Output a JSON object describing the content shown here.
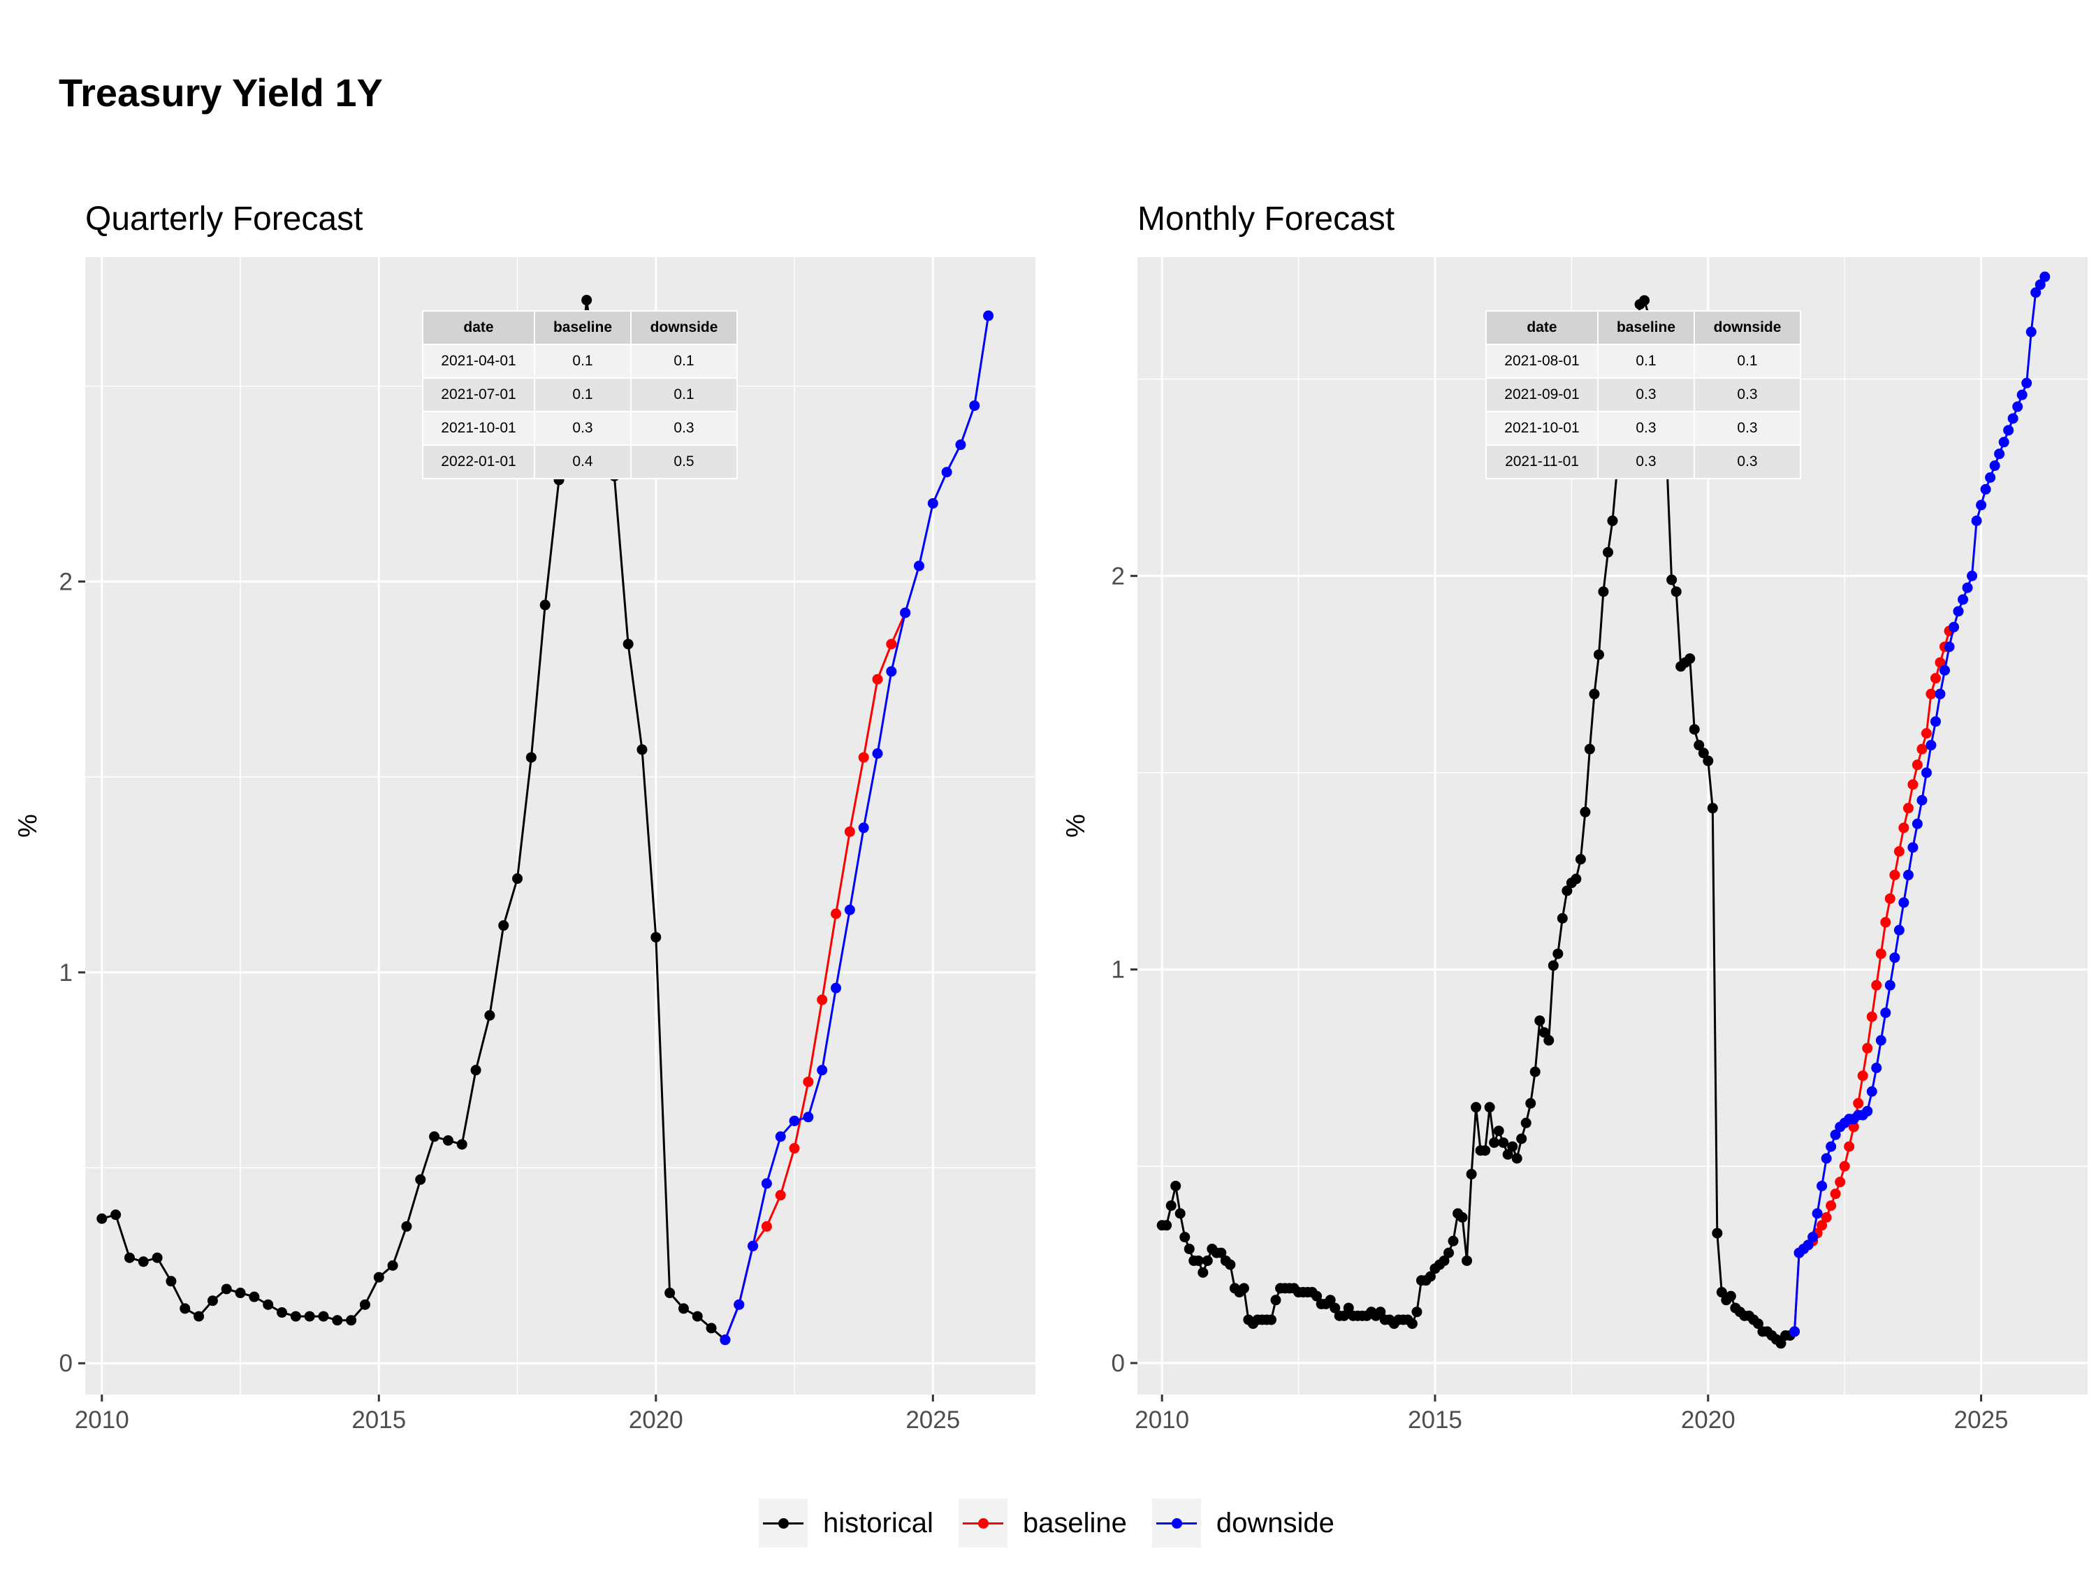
{
  "title": "Treasury Yield 1Y",
  "colors": {
    "historical": "#000000",
    "baseline": "#ff0000",
    "downside": "#0000ff"
  },
  "legend": [
    {
      "key": "historical",
      "label": "historical",
      "color": "#000000"
    },
    {
      "key": "baseline",
      "label": "baseline",
      "color": "#ff0000"
    },
    {
      "key": "downside",
      "label": "downside",
      "color": "#0000ff"
    }
  ],
  "chart_data": [
    {
      "type": "line",
      "title": "Quarterly Forecast",
      "ylabel": "%",
      "xlabel": "",
      "xlim": [
        2009.7,
        2026.85
      ],
      "ylim": [
        -0.08,
        2.83
      ],
      "xticks": [
        {
          "value": 2010,
          "label": "2010"
        },
        {
          "value": 2015,
          "label": "2015"
        },
        {
          "value": 2020,
          "label": "2020"
        },
        {
          "value": 2025,
          "label": "2025"
        }
      ],
      "yticks": [
        {
          "value": 0,
          "label": "0"
        },
        {
          "value": 1,
          "label": "1"
        },
        {
          "value": 2,
          "label": "2"
        }
      ],
      "grid": true,
      "series": [
        {
          "name": "historical",
          "color": "#000000",
          "x": [
            2010.0,
            2010.25,
            2010.5,
            2010.75,
            2011.0,
            2011.25,
            2011.5,
            2011.75,
            2012.0,
            2012.25,
            2012.5,
            2012.75,
            2013.0,
            2013.25,
            2013.5,
            2013.75,
            2014.0,
            2014.25,
            2014.5,
            2014.75,
            2015.0,
            2015.25,
            2015.5,
            2015.75,
            2016.0,
            2016.25,
            2016.5,
            2016.75,
            2017.0,
            2017.25,
            2017.5,
            2017.75,
            2018.0,
            2018.25,
            2018.5,
            2018.75,
            2019.0,
            2019.25,
            2019.5,
            2019.75,
            2020.0,
            2020.25,
            2020.5,
            2020.75,
            2021.0,
            2021.25
          ],
          "y": [
            0.37,
            0.38,
            0.27,
            0.26,
            0.27,
            0.21,
            0.14,
            0.12,
            0.16,
            0.19,
            0.18,
            0.17,
            0.15,
            0.13,
            0.12,
            0.12,
            0.12,
            0.11,
            0.11,
            0.15,
            0.22,
            0.25,
            0.35,
            0.47,
            0.58,
            0.57,
            0.56,
            0.75,
            0.89,
            1.12,
            1.24,
            1.55,
            1.94,
            2.26,
            2.38,
            2.72,
            2.45,
            2.27,
            1.84,
            1.57,
            1.09,
            0.18,
            0.14,
            0.12,
            0.09,
            0.06
          ]
        },
        {
          "name": "baseline",
          "color": "#ff0000",
          "x": [
            2021.25,
            2021.5,
            2021.75,
            2022.0,
            2022.25,
            2022.5,
            2022.75,
            2023.0,
            2023.25,
            2023.5,
            2023.75,
            2024.0,
            2024.25,
            2024.5
          ],
          "y": [
            0.06,
            0.15,
            0.3,
            0.35,
            0.43,
            0.55,
            0.72,
            0.93,
            1.15,
            1.36,
            1.55,
            1.75,
            1.84,
            1.92
          ]
        },
        {
          "name": "downside",
          "color": "#0000ff",
          "x": [
            2021.25,
            2021.5,
            2021.75,
            2022.0,
            2022.25,
            2022.5,
            2022.75,
            2023.0,
            2023.25,
            2023.5,
            2023.75,
            2024.0,
            2024.25,
            2024.5,
            2024.75,
            2025.0,
            2025.25,
            2025.5,
            2025.75,
            2026.0
          ],
          "y": [
            0.06,
            0.15,
            0.3,
            0.46,
            0.58,
            0.62,
            0.63,
            0.75,
            0.96,
            1.16,
            1.37,
            1.56,
            1.77,
            1.92,
            2.04,
            2.2,
            2.28,
            2.35,
            2.45,
            2.68
          ]
        }
      ],
      "table": {
        "headers": [
          "date",
          "baseline",
          "downside"
        ],
        "rows": [
          [
            "2021-04-01",
            "0.1",
            "0.1"
          ],
          [
            "2021-07-01",
            "0.1",
            "0.1"
          ],
          [
            "2021-10-01",
            "0.3",
            "0.3"
          ],
          [
            "2022-01-01",
            "0.4",
            "0.5"
          ]
        ]
      }
    },
    {
      "type": "line",
      "title": "Monthly Forecast",
      "ylabel": "%",
      "xlabel": "",
      "xlim": [
        2009.55,
        2026.95
      ],
      "ylim": [
        -0.08,
        2.81
      ],
      "xticks": [
        {
          "value": 2010,
          "label": "2010"
        },
        {
          "value": 2015,
          "label": "2015"
        },
        {
          "value": 2020,
          "label": "2020"
        },
        {
          "value": 2025,
          "label": "2025"
        }
      ],
      "yticks": [
        {
          "value": 0,
          "label": "0"
        },
        {
          "value": 1,
          "label": "1"
        },
        {
          "value": 2,
          "label": "2"
        }
      ],
      "grid": true,
      "series": [
        {
          "name": "historical",
          "color": "#000000",
          "x": [
            2010.0,
            2010.083,
            2010.167,
            2010.25,
            2010.333,
            2010.417,
            2010.5,
            2010.583,
            2010.667,
            2010.75,
            2010.833,
            2010.917,
            2011.0,
            2011.083,
            2011.167,
            2011.25,
            2011.333,
            2011.417,
            2011.5,
            2011.583,
            2011.667,
            2011.75,
            2011.833,
            2011.917,
            2012.0,
            2012.083,
            2012.167,
            2012.25,
            2012.333,
            2012.417,
            2012.5,
            2012.583,
            2012.667,
            2012.75,
            2012.833,
            2012.917,
            2013.0,
            2013.083,
            2013.167,
            2013.25,
            2013.333,
            2013.417,
            2013.5,
            2013.583,
            2013.667,
            2013.75,
            2013.833,
            2013.917,
            2014.0,
            2014.083,
            2014.167,
            2014.25,
            2014.333,
            2014.417,
            2014.5,
            2014.583,
            2014.667,
            2014.75,
            2014.833,
            2014.917,
            2015.0,
            2015.083,
            2015.167,
            2015.25,
            2015.333,
            2015.417,
            2015.5,
            2015.583,
            2015.667,
            2015.75,
            2015.833,
            2015.917,
            2016.0,
            2016.083,
            2016.167,
            2016.25,
            2016.333,
            2016.417,
            2016.5,
            2016.583,
            2016.667,
            2016.75,
            2016.833,
            2016.917,
            2017.0,
            2017.083,
            2017.167,
            2017.25,
            2017.333,
            2017.417,
            2017.5,
            2017.583,
            2017.667,
            2017.75,
            2017.833,
            2017.917,
            2018.0,
            2018.083,
            2018.167,
            2018.25,
            2018.333,
            2018.417,
            2018.5,
            2018.583,
            2018.667,
            2018.75,
            2018.833,
            2018.917,
            2019.0,
            2019.083,
            2019.167,
            2019.25,
            2019.333,
            2019.417,
            2019.5,
            2019.583,
            2019.667,
            2019.75,
            2019.833,
            2019.917,
            2020.0,
            2020.083,
            2020.167,
            2020.25,
            2020.333,
            2020.417,
            2020.5,
            2020.583,
            2020.667,
            2020.75,
            2020.833,
            2020.917,
            2021.0,
            2021.083,
            2021.167,
            2021.25,
            2021.333,
            2021.417,
            2021.5,
            2021.583
          ],
          "y": [
            0.35,
            0.35,
            0.4,
            0.45,
            0.38,
            0.32,
            0.29,
            0.26,
            0.26,
            0.23,
            0.26,
            0.29,
            0.28,
            0.28,
            0.26,
            0.25,
            0.19,
            0.18,
            0.19,
            0.11,
            0.1,
            0.11,
            0.11,
            0.11,
            0.11,
            0.16,
            0.19,
            0.19,
            0.19,
            0.19,
            0.18,
            0.18,
            0.18,
            0.18,
            0.17,
            0.15,
            0.15,
            0.16,
            0.14,
            0.12,
            0.12,
            0.14,
            0.12,
            0.12,
            0.12,
            0.12,
            0.13,
            0.12,
            0.13,
            0.11,
            0.11,
            0.1,
            0.11,
            0.11,
            0.11,
            0.1,
            0.13,
            0.21,
            0.21,
            0.22,
            0.24,
            0.25,
            0.26,
            0.28,
            0.31,
            0.38,
            0.37,
            0.26,
            0.48,
            0.65,
            0.54,
            0.54,
            0.65,
            0.56,
            0.59,
            0.56,
            0.53,
            0.55,
            0.52,
            0.57,
            0.61,
            0.66,
            0.74,
            0.87,
            0.84,
            0.82,
            1.01,
            1.04,
            1.13,
            1.2,
            1.22,
            1.23,
            1.28,
            1.4,
            1.56,
            1.7,
            1.8,
            1.96,
            2.06,
            2.14,
            2.27,
            2.38,
            2.41,
            2.5,
            2.55,
            2.69,
            2.7,
            2.66,
            2.6,
            2.54,
            2.49,
            2.27,
            1.99,
            1.96,
            1.77,
            1.78,
            1.79,
            1.61,
            1.57,
            1.55,
            1.53,
            1.41,
            0.33,
            0.18,
            0.16,
            0.17,
            0.14,
            0.13,
            0.12,
            0.12,
            0.11,
            0.1,
            0.08,
            0.08,
            0.07,
            0.06,
            0.05,
            0.07,
            0.07,
            0.08
          ]
        },
        {
          "name": "baseline",
          "color": "#ff0000",
          "x": [
            2021.583,
            2021.667,
            2021.75,
            2021.833,
            2021.917,
            2022.0,
            2022.083,
            2022.167,
            2022.25,
            2022.333,
            2022.417,
            2022.5,
            2022.583,
            2022.667,
            2022.75,
            2022.833,
            2022.917,
            2023.0,
            2023.083,
            2023.167,
            2023.25,
            2023.333,
            2023.417,
            2023.5,
            2023.583,
            2023.667,
            2023.75,
            2023.833,
            2023.917,
            2024.0,
            2024.083,
            2024.167,
            2024.25,
            2024.333,
            2024.417
          ],
          "y": [
            0.08,
            0.28,
            0.29,
            0.3,
            0.31,
            0.33,
            0.35,
            0.37,
            0.4,
            0.43,
            0.46,
            0.5,
            0.55,
            0.6,
            0.66,
            0.73,
            0.8,
            0.88,
            0.96,
            1.04,
            1.12,
            1.18,
            1.24,
            1.3,
            1.36,
            1.41,
            1.47,
            1.52,
            1.56,
            1.6,
            1.7,
            1.74,
            1.78,
            1.82,
            1.86
          ]
        },
        {
          "name": "downside",
          "color": "#0000ff",
          "x": [
            2021.583,
            2021.667,
            2021.75,
            2021.833,
            2021.917,
            2022.0,
            2022.083,
            2022.167,
            2022.25,
            2022.333,
            2022.417,
            2022.5,
            2022.583,
            2022.667,
            2022.75,
            2022.833,
            2022.917,
            2023.0,
            2023.083,
            2023.167,
            2023.25,
            2023.333,
            2023.417,
            2023.5,
            2023.583,
            2023.667,
            2023.75,
            2023.833,
            2023.917,
            2024.0,
            2024.083,
            2024.167,
            2024.25,
            2024.333,
            2024.417,
            2024.5,
            2024.583,
            2024.667,
            2024.75,
            2024.833,
            2024.917,
            2025.0,
            2025.083,
            2025.167,
            2025.25,
            2025.333,
            2025.417,
            2025.5,
            2025.583,
            2025.667,
            2025.75,
            2025.833,
            2025.917,
            2026.0,
            2026.083,
            2026.167
          ],
          "y": [
            0.08,
            0.28,
            0.29,
            0.3,
            0.32,
            0.38,
            0.45,
            0.52,
            0.55,
            0.58,
            0.6,
            0.61,
            0.62,
            0.62,
            0.63,
            0.63,
            0.64,
            0.69,
            0.75,
            0.82,
            0.89,
            0.96,
            1.03,
            1.1,
            1.17,
            1.24,
            1.31,
            1.37,
            1.43,
            1.5,
            1.57,
            1.63,
            1.7,
            1.76,
            1.82,
            1.87,
            1.91,
            1.94,
            1.97,
            2.0,
            2.14,
            2.18,
            2.22,
            2.25,
            2.28,
            2.31,
            2.34,
            2.37,
            2.4,
            2.43,
            2.46,
            2.49,
            2.62,
            2.72,
            2.74,
            2.76
          ]
        }
      ],
      "table": {
        "headers": [
          "date",
          "baseline",
          "downside"
        ],
        "rows": [
          [
            "2021-08-01",
            "0.1",
            "0.1"
          ],
          [
            "2021-09-01",
            "0.3",
            "0.3"
          ],
          [
            "2021-10-01",
            "0.3",
            "0.3"
          ],
          [
            "2021-11-01",
            "0.3",
            "0.3"
          ]
        ]
      }
    }
  ]
}
